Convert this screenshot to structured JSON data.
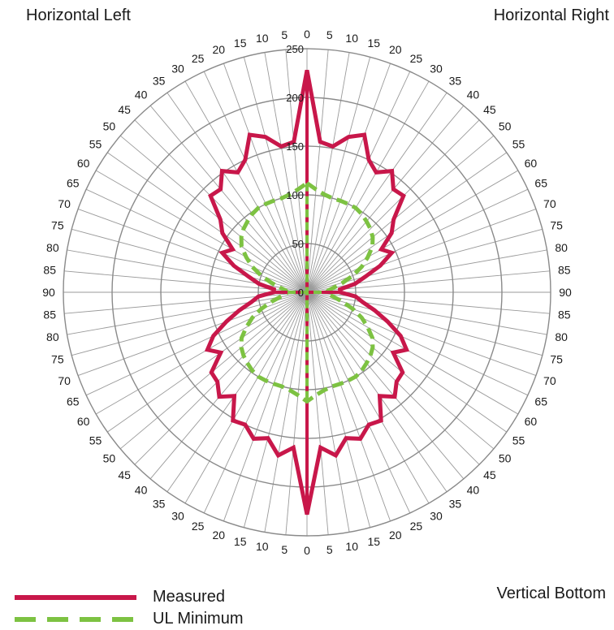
{
  "corners": {
    "top_left": "Horizontal Left",
    "top_right": "Horizontal Right",
    "bottom_right": "Vertical Bottom"
  },
  "legend": [
    {
      "label": "Measured",
      "color": "#c8174a",
      "style": "solid"
    },
    {
      "label": "UL Minimum",
      "color": "#7dc242",
      "style": "dashed"
    }
  ],
  "chart_data": {
    "type": "polar",
    "title": "",
    "angle_unit": "degrees",
    "angle_labels_right": [
      0,
      5,
      10,
      15,
      20,
      25,
      30,
      35,
      40,
      45,
      50,
      55,
      60,
      65,
      70,
      75,
      80,
      85,
      90,
      85,
      80,
      75,
      70,
      65,
      60,
      55,
      50,
      45,
      40,
      35,
      30,
      25,
      20,
      15,
      10,
      5,
      0
    ],
    "angle_labels_left": [
      5,
      10,
      15,
      20,
      25,
      30,
      35,
      40,
      45,
      50,
      55,
      60,
      65,
      70,
      75,
      80,
      85,
      90,
      85,
      80,
      75,
      70,
      65,
      60,
      55,
      50,
      45,
      40,
      35,
      30,
      25,
      20,
      15,
      10,
      5
    ],
    "radial_ticks": [
      0,
      50,
      100,
      150,
      200,
      250
    ],
    "radial_max": 250,
    "grid_rings": [
      50,
      100,
      150,
      200,
      250
    ],
    "grid": true,
    "legend_position": "bottom-left",
    "series": [
      {
        "name": "Measured",
        "color": "#c8174a",
        "theta": [
          0,
          5,
          10,
          15,
          20,
          25,
          30,
          35,
          40,
          45,
          50,
          55,
          60,
          65,
          70,
          75,
          80,
          85,
          90,
          95,
          100,
          105,
          110,
          115,
          120,
          125,
          130,
          135,
          140,
          145,
          150,
          155,
          160,
          165,
          170,
          175,
          180,
          185,
          190,
          195,
          200,
          205,
          210,
          215,
          220,
          225,
          230,
          235,
          240,
          245,
          250,
          255,
          260,
          265,
          270,
          275,
          280,
          285,
          290,
          295,
          300,
          305,
          310,
          315,
          320,
          325,
          330,
          335,
          340,
          345,
          350,
          355
        ],
        "r": [
          228,
          155,
          152,
          165,
          172,
          150,
          142,
          152,
          138,
          140,
          116,
          106,
          88,
          96,
          80,
          62,
          50,
          34,
          34,
          50,
          58,
          72,
          88,
          106,
          118,
          108,
          128,
          130,
          140,
          130,
          152,
          150,
          160,
          155,
          170,
          160,
          228,
          160,
          170,
          155,
          160,
          150,
          152,
          130,
          140,
          130,
          128,
          108,
          118,
          106,
          88,
          72,
          58,
          50,
          34,
          34,
          50,
          62,
          80,
          96,
          88,
          106,
          116,
          140,
          138,
          152,
          142,
          150,
          172,
          165,
          152,
          155
        ]
      },
      {
        "name": "UL Minimum",
        "color": "#7dc242",
        "theta": [
          0,
          5,
          10,
          15,
          20,
          25,
          30,
          35,
          40,
          45,
          50,
          55,
          60,
          65,
          70,
          75,
          80,
          85,
          90,
          95,
          100,
          105,
          110,
          115,
          120,
          125,
          130,
          135,
          140,
          145,
          150,
          155,
          160,
          165,
          170,
          175,
          180,
          185,
          190,
          195,
          200,
          205,
          210,
          215,
          220,
          225,
          230,
          235,
          240,
          245,
          250,
          255,
          260,
          265,
          270,
          275,
          280,
          285,
          290,
          295,
          300,
          305,
          310,
          315,
          320,
          325,
          330,
          335,
          340,
          345,
          350,
          355
        ],
        "r": [
          112,
          106,
          102,
          100,
          100,
          100,
          100,
          98,
          95,
          92,
          88,
          82,
          72,
          62,
          50,
          38,
          28,
          22,
          20,
          22,
          28,
          38,
          50,
          62,
          72,
          82,
          88,
          92,
          95,
          98,
          100,
          100,
          100,
          100,
          102,
          106,
          112,
          106,
          102,
          100,
          100,
          100,
          100,
          98,
          95,
          92,
          88,
          82,
          72,
          62,
          50,
          38,
          28,
          22,
          20,
          22,
          28,
          38,
          50,
          62,
          72,
          82,
          88,
          92,
          95,
          98,
          100,
          100,
          100,
          100,
          102,
          106
        ]
      }
    ]
  }
}
